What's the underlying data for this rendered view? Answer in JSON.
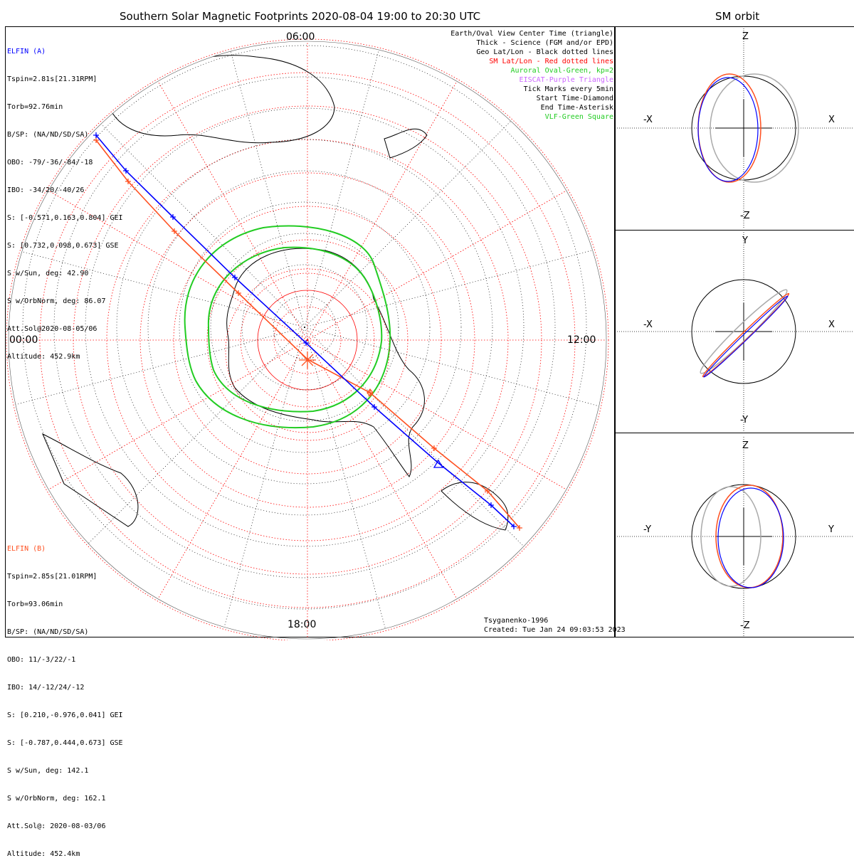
{
  "chart_data": [
    {
      "type": "polar-map",
      "title": "Southern Solar Magnetic Footprints 2020-08-04 19:00 to 20:30 UTC",
      "mlt_labels": {
        "top": "06:00",
        "left": "00:00",
        "right": "12:00",
        "bottom": "18:00"
      },
      "legend": [
        {
          "text": "Earth/Oval View Center Time (triangle)",
          "color": "#000000"
        },
        {
          "text": "Thick - Science (FGM and/or EPD)",
          "color": "#000000"
        },
        {
          "text": "Geo Lat/Lon - Black dotted lines",
          "color": "#000000"
        },
        {
          "text": "SM Lat/Lon - Red dotted lines",
          "color": "#ff0000"
        },
        {
          "text": "Auroral Oval-Green, kp=2",
          "color": "#22cc22"
        },
        {
          "text": "EISCAT-Purple Triangle",
          "color": "#cc66ff"
        },
        {
          "text": "Tick Marks every 5min",
          "color": "#000000"
        },
        {
          "text": "Start Time-Diamond",
          "color": "#000000"
        },
        {
          "text": "End Time-Asterisk",
          "color": "#000000"
        },
        {
          "text": "VLF-Green Square",
          "color": "#22cc22"
        }
      ],
      "series": [
        {
          "name": "ELFIN (A)",
          "color": "#0000ff"
        },
        {
          "name": "ELFIN (B)",
          "color": "#ff5020"
        }
      ]
    },
    {
      "type": "orbit-projection",
      "title": "SM orbit",
      "panels": [
        {
          "up": "Z",
          "down": "-Z",
          "left": "-X",
          "right": "X"
        },
        {
          "up": "Y",
          "down": "-Y",
          "left": "-X",
          "right": "X"
        },
        {
          "up": "Z",
          "down": "-Z",
          "left": "-Y",
          "right": "Y"
        }
      ]
    }
  ],
  "elfin_a": {
    "name": "ELFIN (A)",
    "color": "#0000ff",
    "lines": [
      "Tspin=2.81s[21.31RPM]",
      "Torb=92.76min",
      "B/SP: (NA/ND/SD/SA)",
      "OBO: -79/-36/-84/-18",
      "IBO: -34/20/-40/26",
      "S: [-0.571,0.163,0.804] GEI",
      "S: [0.732,0.098,0.673] GSE",
      "S w/Sun, deg: 42.90",
      "S w/OrbNorm, deg: 86.07",
      "Att.Sol@2020-08-05/06",
      "Altitude: 452.9km"
    ]
  },
  "elfin_b": {
    "name": "ELFIN (B)",
    "color": "#ff5020",
    "lines": [
      "Tspin=2.85s[21.01RPM]",
      "Torb=93.06min",
      "B/SP: (NA/ND/SD/SA)",
      "OBO: 11/-3/22/-1",
      "IBO: 14/-12/24/-12",
      "S: [0.210,-0.976,0.041] GEI",
      "S: [-0.787,0.444,0.673] GSE",
      "S w/Sun, deg: 142.1",
      "S w/OrbNorm, deg: 162.1",
      "Att.Sol@: 2020-08-03/06",
      "Altitude: 452.4km"
    ]
  },
  "footer": {
    "model": "Tsyganenko-1996",
    "created": "Created: Tue Jan 24 09:03:53 2023"
  },
  "colors": {
    "oval": "#22cc22",
    "grid_sm": "#ff0000",
    "grid_geo": "#000000",
    "orbit_gray": "#aaaaaa"
  }
}
